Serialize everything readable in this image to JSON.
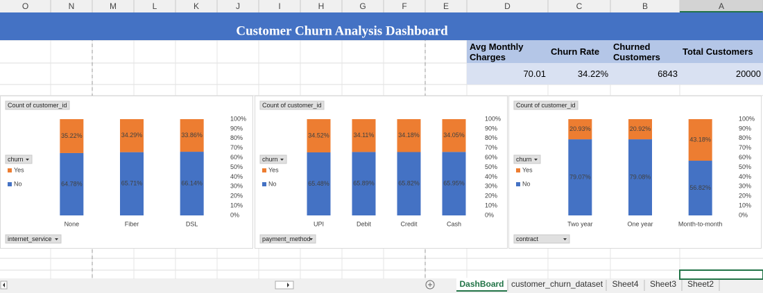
{
  "columns": [
    "O",
    "N",
    "M",
    "L",
    "K",
    "J",
    "I",
    "H",
    "G",
    "F",
    "E",
    "D",
    "C",
    "B",
    "A"
  ],
  "title": "Customer Churn Analysis Dashboard",
  "kpis": {
    "headers": [
      "Avg Monthly Charges",
      "Churn Rate",
      "Churned Customers",
      "Total Customers"
    ],
    "values": [
      "70.01",
      "34.22%",
      "6843",
      "20000"
    ]
  },
  "chart_data": [
    {
      "type": "bar",
      "stacked": true,
      "legend": "left",
      "field_button": "Count of customer_id",
      "legend_title": "churn",
      "axis_field": "internet_service",
      "categories": [
        "None",
        "Fiber",
        "DSL"
      ],
      "series": [
        {
          "name": "No",
          "color": "#4472c4",
          "values": [
            64.78,
            65.71,
            66.14
          ],
          "value_labels": [
            "64.78%",
            "65.71%",
            "66.14%"
          ]
        },
        {
          "name": "Yes",
          "color": "#ed7d31",
          "values": [
            35.22,
            34.29,
            33.86
          ],
          "value_labels": [
            "35.22%",
            "34.29%",
            "33.86%"
          ]
        }
      ],
      "ylim": [
        0,
        100
      ],
      "yticks": [
        {
          "value": 0,
          "label": "0%"
        },
        {
          "value": 10,
          "label": "10%"
        },
        {
          "value": 20,
          "label": "20%"
        },
        {
          "value": 30,
          "label": "30%"
        },
        {
          "value": 40,
          "label": "40%"
        },
        {
          "value": 50,
          "label": "50%"
        },
        {
          "value": 60,
          "label": "60%"
        },
        {
          "value": 70,
          "label": "70%"
        },
        {
          "value": 80,
          "label": "80%"
        },
        {
          "value": 90,
          "label": "90%"
        },
        {
          "value": 100,
          "label": "100%"
        }
      ]
    },
    {
      "type": "bar",
      "stacked": true,
      "legend": "left",
      "field_button": "Count of customer_id",
      "legend_title": "churn",
      "axis_field": "payment_method",
      "categories": [
        "UPI",
        "Debit",
        "Credit",
        "Cash"
      ],
      "series": [
        {
          "name": "No",
          "color": "#4472c4",
          "values": [
            65.48,
            65.89,
            65.82,
            65.95
          ],
          "value_labels": [
            "65.48%",
            "65.89%",
            "65.82%",
            "65.95%"
          ]
        },
        {
          "name": "Yes",
          "color": "#ed7d31",
          "values": [
            34.52,
            34.11,
            34.18,
            34.05
          ],
          "value_labels": [
            "34.52%",
            "34.11%",
            "34.18%",
            "34.05%"
          ]
        }
      ],
      "ylim": [
        0,
        100
      ],
      "yticks": [
        {
          "value": 0,
          "label": "0%"
        },
        {
          "value": 10,
          "label": "10%"
        },
        {
          "value": 20,
          "label": "20%"
        },
        {
          "value": 30,
          "label": "30%"
        },
        {
          "value": 40,
          "label": "40%"
        },
        {
          "value": 50,
          "label": "50%"
        },
        {
          "value": 60,
          "label": "60%"
        },
        {
          "value": 70,
          "label": "70%"
        },
        {
          "value": 80,
          "label": "80%"
        },
        {
          "value": 90,
          "label": "90%"
        },
        {
          "value": 100,
          "label": "100%"
        }
      ]
    },
    {
      "type": "bar",
      "stacked": true,
      "legend": "left",
      "field_button": "Count of customer_id",
      "legend_title": "churn",
      "axis_field": "contract",
      "categories": [
        "Two year",
        "One year",
        "Month-to-month"
      ],
      "series": [
        {
          "name": "No",
          "color": "#4472c4",
          "values": [
            79.07,
            79.08,
            56.82
          ],
          "value_labels": [
            "79.07%",
            "79.08%",
            "56.82%"
          ]
        },
        {
          "name": "Yes",
          "color": "#ed7d31",
          "values": [
            20.93,
            20.92,
            43.18
          ],
          "value_labels": [
            "20.93%",
            "20.92%",
            "43.18%"
          ]
        }
      ],
      "ylim": [
        0,
        100
      ],
      "yticks": [
        {
          "value": 0,
          "label": "0%"
        },
        {
          "value": 10,
          "label": "10%"
        },
        {
          "value": 20,
          "label": "20%"
        },
        {
          "value": 30,
          "label": "30%"
        },
        {
          "value": 40,
          "label": "40%"
        },
        {
          "value": 50,
          "label": "50%"
        },
        {
          "value": 60,
          "label": "60%"
        },
        {
          "value": 70,
          "label": "70%"
        },
        {
          "value": 80,
          "label": "80%"
        },
        {
          "value": 90,
          "label": "90%"
        },
        {
          "value": 100,
          "label": "100%"
        }
      ]
    }
  ],
  "tabs": [
    "DashBoard",
    "customer_churn_dataset",
    "Sheet4",
    "Sheet3",
    "Sheet2"
  ],
  "active_tab": 0
}
